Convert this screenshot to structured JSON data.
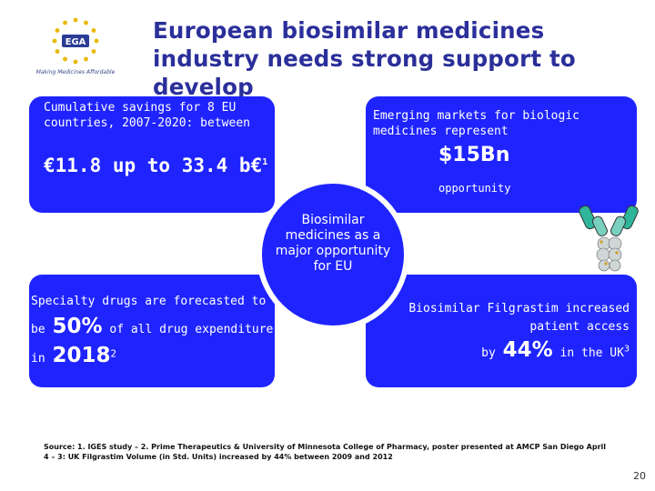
{
  "logo": {
    "text": "EGA",
    "tagline": "Making Medicines Affordable"
  },
  "title": "European biosimilar medicines industry needs strong support to develop",
  "box_tl": {
    "text": "Cumulative savings for 8 EU countries, 2007-2020: between",
    "amount": "€11.8 up to 33.4 b€",
    "amount_sup": "1"
  },
  "box_tr": {
    "text": "Emerging markets for biologic medicines represent",
    "big": "$15Bn",
    "sub": "opportunity"
  },
  "circle": {
    "text": "Biosimilar medicines as a major opportunity for EU"
  },
  "box_bl": {
    "line1": "Specialty drugs are forecasted to",
    "be": "be",
    "pct": "50%",
    "rest": "of all drug expenditure",
    "in": "in",
    "year": "2018",
    "year_sup": "2"
  },
  "box_br": {
    "line1": "Biosimilar Filgrastim increased",
    "line2": "patient access",
    "by": "by",
    "pct": "44%",
    "rest": "in the UK",
    "sup": "3"
  },
  "source": "Source: 1. IGES study – 2. Prime Therapeutics & University of Minnesota College of Pharmacy, poster presented at AMCP San Diego April 4 – 3: UK Filgrastim Volume (in Std. Units) increased by 44% between 2009 and 2012",
  "page_number": "20",
  "colors": {
    "box": "#1f24ff",
    "title": "#2b2f9a"
  }
}
